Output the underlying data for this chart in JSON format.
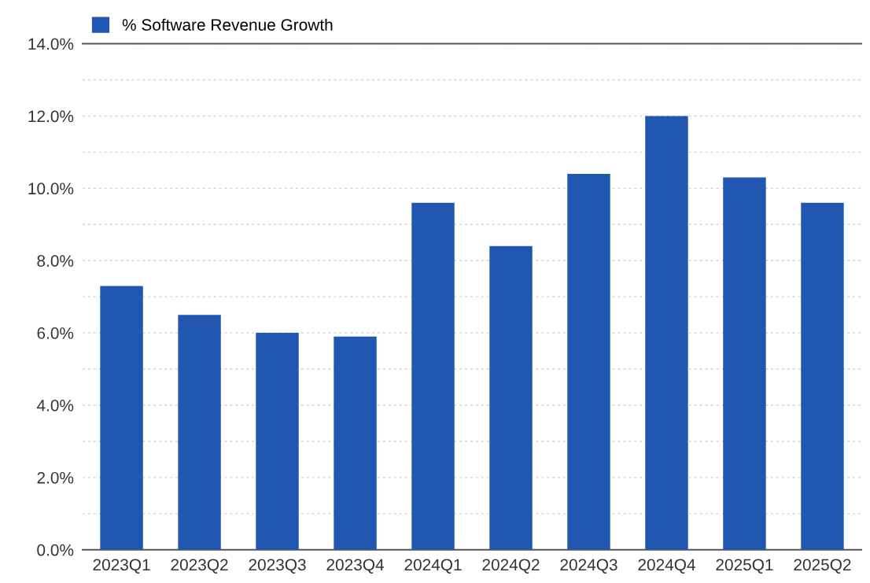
{
  "chart_data": {
    "type": "bar",
    "categories": [
      "2023Q1",
      "2023Q2",
      "2023Q3",
      "2023Q4",
      "2024Q1",
      "2024Q2",
      "2024Q3",
      "2024Q4",
      "2025Q1",
      "2025Q2"
    ],
    "series": [
      {
        "name": "% Software Revenue Growth",
        "color": "#2157b0",
        "values": [
          7.3,
          6.5,
          6.0,
          5.9,
          9.6,
          8.4,
          10.4,
          12.0,
          10.3,
          9.6
        ]
      }
    ],
    "ylim": [
      0,
      14
    ],
    "yticks": [
      {
        "value": 0,
        "label": "0.0%"
      },
      {
        "value": 1,
        "label": null
      },
      {
        "value": 2,
        "label": "2.0%"
      },
      {
        "value": 3,
        "label": null
      },
      {
        "value": 4,
        "label": "4.0%"
      },
      {
        "value": 5,
        "label": null
      },
      {
        "value": 6,
        "label": "6.0%"
      },
      {
        "value": 7,
        "label": null
      },
      {
        "value": 8,
        "label": "8.0%"
      },
      {
        "value": 9,
        "label": null
      },
      {
        "value": 10,
        "label": "10.0%"
      },
      {
        "value": 11,
        "label": null
      },
      {
        "value": 12,
        "label": "12.0%"
      },
      {
        "value": 13,
        "label": null
      },
      {
        "value": 14,
        "label": "14.0%"
      }
    ],
    "grid": "y",
    "legend": "top left"
  }
}
